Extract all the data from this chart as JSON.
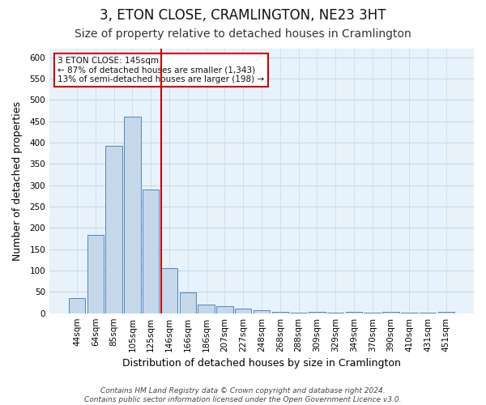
{
  "title": "3, ETON CLOSE, CRAMLINGTON, NE23 3HT",
  "subtitle": "Size of property relative to detached houses in Cramlington",
  "xlabel": "Distribution of detached houses by size in Cramlington",
  "ylabel": "Number of detached properties",
  "footer_line1": "Contains HM Land Registry data © Crown copyright and database right 2024.",
  "footer_line2": "Contains public sector information licensed under the Open Government Licence v3.0.",
  "bar_labels": [
    "44sqm",
    "64sqm",
    "85sqm",
    "105sqm",
    "125sqm",
    "146sqm",
    "166sqm",
    "186sqm",
    "207sqm",
    "227sqm",
    "248sqm",
    "268sqm",
    "288sqm",
    "309sqm",
    "329sqm",
    "349sqm",
    "370sqm",
    "390sqm",
    "410sqm",
    "431sqm",
    "451sqm"
  ],
  "bar_values": [
    35,
    183,
    393,
    460,
    290,
    105,
    48,
    20,
    16,
    10,
    7,
    4,
    1,
    4,
    1,
    4,
    1,
    3,
    1,
    1,
    4
  ],
  "bar_color": "#c5d8ea",
  "bar_edge_color": "#4f86c0",
  "vline_position": 5,
  "vline_color": "#cc0000",
  "annotation_line1": "3 ETON CLOSE: 145sqm",
  "annotation_line2": "← 87% of detached houses are smaller (1,343)",
  "annotation_line3": "13% of semi-detached houses are larger (198) →",
  "annotation_box_facecolor": "white",
  "annotation_box_edgecolor": "#cc0000",
  "ylim": [
    0,
    620
  ],
  "yticks": [
    0,
    50,
    100,
    150,
    200,
    250,
    300,
    350,
    400,
    450,
    500,
    550,
    600
  ],
  "plot_bg_color": "#e8f2fb",
  "fig_bg_color": "#ffffff",
  "grid_color": "#c5d8ea",
  "title_fontsize": 12,
  "subtitle_fontsize": 10,
  "axis_label_fontsize": 9,
  "tick_fontsize": 7.5,
  "footer_fontsize": 6.5
}
